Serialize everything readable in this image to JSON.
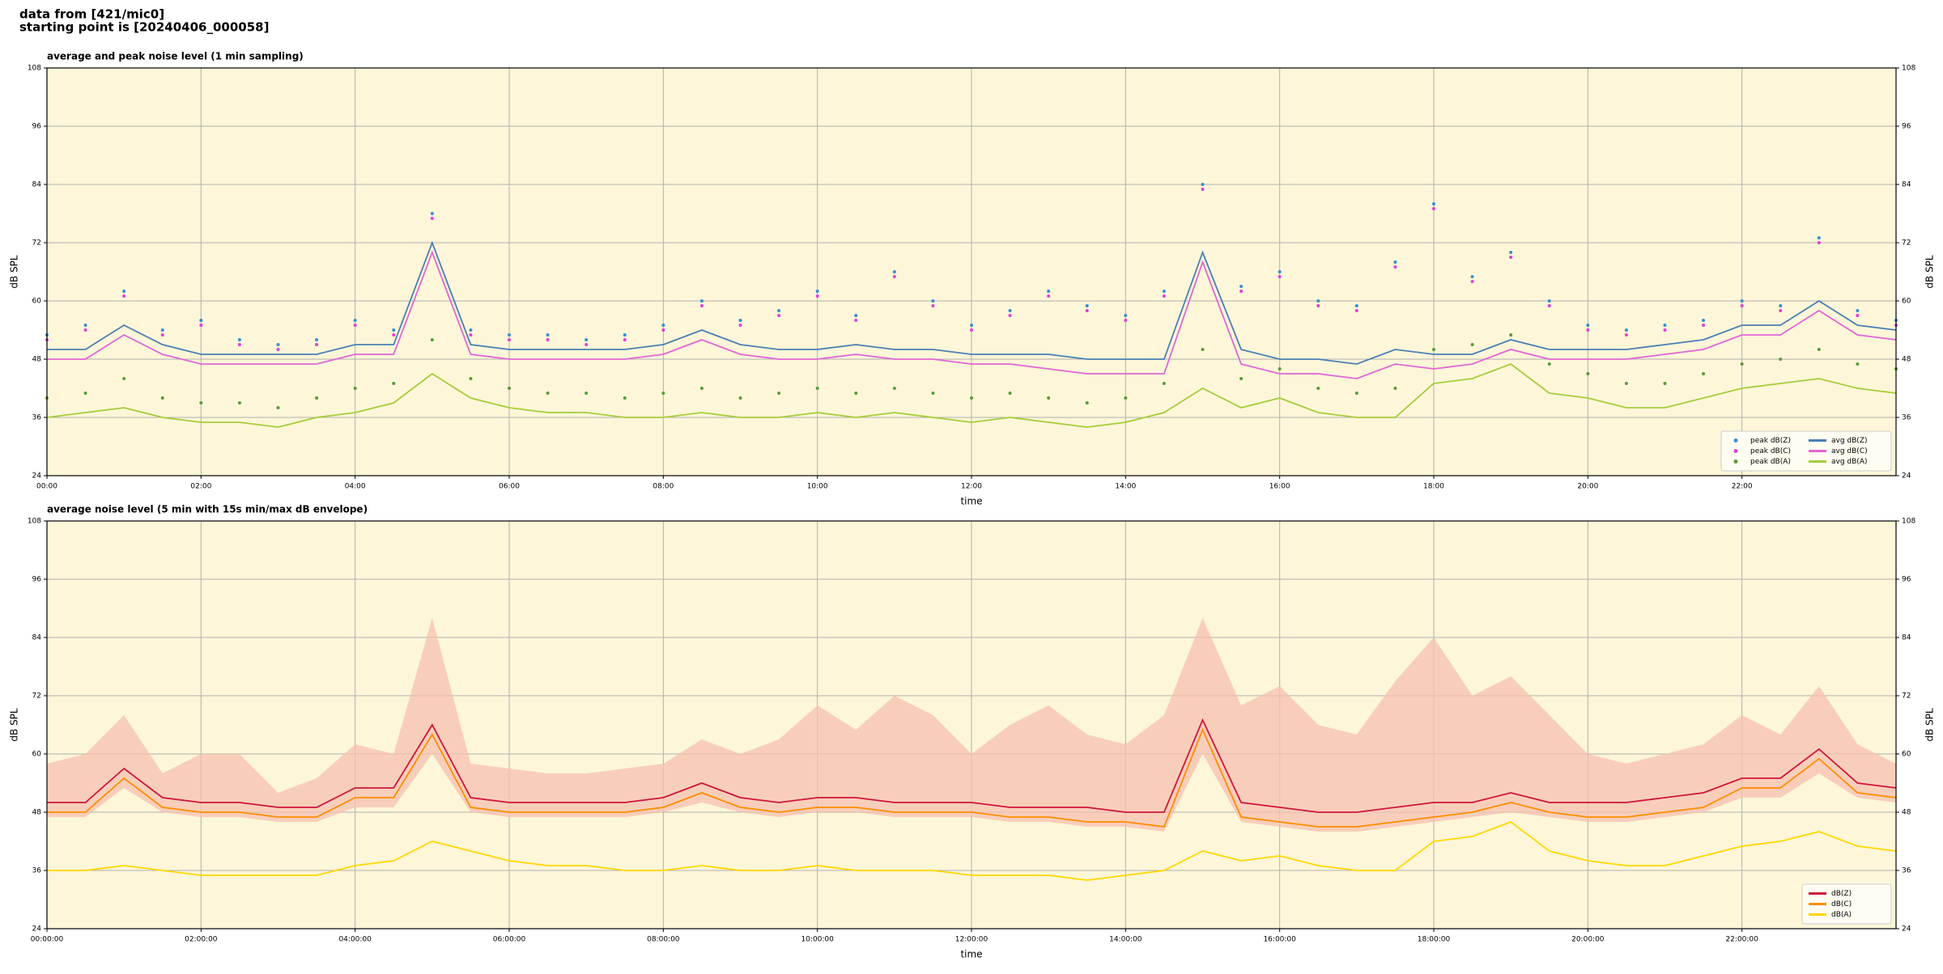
{
  "header": {
    "line1": "data from [421/mic0]",
    "line2": "starting point is [20240406_000058]"
  },
  "chart_data": [
    {
      "type": "line",
      "title": "average and peak noise level (1 min sampling)",
      "xlabel": "time",
      "ylabel": "dB SPL",
      "xlim": [
        0,
        24
      ],
      "ylim": [
        24,
        108
      ],
      "yticks": [
        24,
        36,
        48,
        60,
        72,
        84,
        96,
        108
      ],
      "xticks": [
        {
          "value": 0,
          "label": "00:00"
        },
        {
          "value": 2,
          "label": "02:00"
        },
        {
          "value": 4,
          "label": "04:00"
        },
        {
          "value": 6,
          "label": "06:00"
        },
        {
          "value": 8,
          "label": "08:00"
        },
        {
          "value": 10,
          "label": "10:00"
        },
        {
          "value": 12,
          "label": "12:00"
        },
        {
          "value": 14,
          "label": "14:00"
        },
        {
          "value": 16,
          "label": "16:00"
        },
        {
          "value": 18,
          "label": "18:00"
        },
        {
          "value": 20,
          "label": "20:00"
        },
        {
          "value": 22,
          "label": "22:00"
        }
      ],
      "grid": true,
      "legend": "lower right",
      "background": "#fdf6d8",
      "x": [
        0,
        0.5,
        1,
        1.5,
        2,
        2.5,
        3,
        3.5,
        4,
        4.5,
        5,
        5.5,
        6,
        6.5,
        7,
        7.5,
        8,
        8.5,
        9,
        9.5,
        10,
        10.5,
        11,
        11.5,
        12,
        12.5,
        13,
        13.5,
        14,
        14.5,
        15,
        15.5,
        16,
        16.5,
        17,
        17.5,
        18,
        18.5,
        19,
        19.5,
        20,
        20.5,
        21,
        21.5,
        22,
        22.5,
        23,
        23.5,
        24
      ],
      "series": [
        {
          "name": "peak dB(Z)",
          "style": "scatter",
          "color": "#3a8fd0",
          "values": [
            53,
            55,
            62,
            54,
            56,
            52,
            51,
            52,
            56,
            54,
            78,
            54,
            53,
            53,
            52,
            53,
            55,
            60,
            56,
            58,
            62,
            57,
            66,
            60,
            55,
            58,
            62,
            59,
            57,
            62,
            84,
            63,
            66,
            60,
            59,
            68,
            80,
            65,
            70,
            60,
            55,
            54,
            55,
            56,
            60,
            59,
            73,
            58,
            56
          ]
        },
        {
          "name": "peak dB(C)",
          "style": "scatter",
          "color": "#e040d8",
          "values": [
            52,
            54,
            61,
            53,
            55,
            51,
            50,
            51,
            55,
            53,
            77,
            53,
            52,
            52,
            51,
            52,
            54,
            59,
            55,
            57,
            61,
            56,
            65,
            59,
            54,
            57,
            61,
            58,
            56,
            61,
            83,
            62,
            65,
            59,
            58,
            67,
            79,
            64,
            69,
            59,
            54,
            53,
            54,
            55,
            59,
            58,
            72,
            57,
            55
          ]
        },
        {
          "name": "peak dB(A)",
          "style": "scatter",
          "color": "#5a9a3a",
          "values": [
            40,
            41,
            44,
            40,
            39,
            39,
            38,
            40,
            42,
            43,
            52,
            44,
            42,
            41,
            41,
            40,
            41,
            42,
            40,
            41,
            42,
            41,
            42,
            41,
            40,
            41,
            40,
            39,
            40,
            43,
            50,
            44,
            46,
            42,
            41,
            42,
            50,
            51,
            53,
            47,
            45,
            43,
            43,
            45,
            47,
            48,
            50,
            47,
            46
          ]
        },
        {
          "name": "avg dB(Z)",
          "style": "line",
          "color": "#4a7fb5",
          "values": [
            50,
            50,
            55,
            51,
            49,
            49,
            49,
            49,
            51,
            51,
            72,
            51,
            50,
            50,
            50,
            50,
            51,
            54,
            51,
            50,
            50,
            51,
            50,
            50,
            49,
            49,
            49,
            48,
            48,
            48,
            70,
            50,
            48,
            48,
            47,
            50,
            49,
            49,
            52,
            50,
            50,
            50,
            51,
            52,
            55,
            55,
            60,
            55,
            54
          ]
        },
        {
          "name": "avg dB(C)",
          "style": "line",
          "color": "#e066d6",
          "values": [
            48,
            48,
            53,
            49,
            47,
            47,
            47,
            47,
            49,
            49,
            70,
            49,
            48,
            48,
            48,
            48,
            49,
            52,
            49,
            48,
            48,
            49,
            48,
            48,
            47,
            47,
            46,
            45,
            45,
            45,
            68,
            47,
            45,
            45,
            44,
            47,
            46,
            47,
            50,
            48,
            48,
            48,
            49,
            50,
            53,
            53,
            58,
            53,
            52
          ]
        },
        {
          "name": "avg dB(A)",
          "style": "line",
          "color": "#a6cc3c",
          "values": [
            36,
            37,
            38,
            36,
            35,
            35,
            34,
            36,
            37,
            39,
            45,
            40,
            38,
            37,
            37,
            36,
            36,
            37,
            36,
            36,
            37,
            36,
            37,
            36,
            35,
            36,
            35,
            34,
            35,
            37,
            42,
            38,
            40,
            37,
            36,
            36,
            43,
            44,
            47,
            41,
            40,
            38,
            38,
            40,
            42,
            43,
            44,
            42,
            41
          ]
        }
      ]
    },
    {
      "type": "line",
      "title": "average noise level (5 min with 15s min/max dB envelope)",
      "xlabel": "time",
      "ylabel": "dB SPL",
      "xlim": [
        0,
        24
      ],
      "ylim": [
        24,
        108
      ],
      "yticks": [
        24,
        36,
        48,
        60,
        72,
        84,
        96,
        108
      ],
      "xticks": [
        {
          "value": 0,
          "label": "00:00:00"
        },
        {
          "value": 2,
          "label": "02:00:00"
        },
        {
          "value": 4,
          "label": "04:00:00"
        },
        {
          "value": 6,
          "label": "06:00:00"
        },
        {
          "value": 8,
          "label": "08:00:00"
        },
        {
          "value": 10,
          "label": "10:00:00"
        },
        {
          "value": 12,
          "label": "12:00:00"
        },
        {
          "value": 14,
          "label": "14:00:00"
        },
        {
          "value": 16,
          "label": "16:00:00"
        },
        {
          "value": 18,
          "label": "18:00:00"
        },
        {
          "value": 20,
          "label": "20:00:00"
        },
        {
          "value": 22,
          "label": "22:00:00"
        }
      ],
      "grid": true,
      "legend": "lower right",
      "background": "#fdf6d8",
      "x": [
        0,
        0.5,
        1,
        1.5,
        2,
        2.5,
        3,
        3.5,
        4,
        4.5,
        5,
        5.5,
        6,
        6.5,
        7,
        7.5,
        8,
        8.5,
        9,
        9.5,
        10,
        10.5,
        11,
        11.5,
        12,
        12.5,
        13,
        13.5,
        14,
        14.5,
        15,
        15.5,
        16,
        16.5,
        17,
        17.5,
        18,
        18.5,
        19,
        19.5,
        20,
        20.5,
        21,
        21.5,
        22,
        22.5,
        23,
        23.5,
        24
      ],
      "band": {
        "color": "#f5c0b0",
        "low": [
          47,
          47,
          53,
          48,
          47,
          47,
          46,
          46,
          49,
          49,
          60,
          48,
          47,
          47,
          47,
          47,
          48,
          50,
          48,
          47,
          48,
          48,
          47,
          47,
          47,
          46,
          46,
          45,
          45,
          44,
          60,
          46,
          45,
          44,
          44,
          45,
          46,
          47,
          48,
          47,
          46,
          46,
          47,
          48,
          51,
          51,
          56,
          51,
          50
        ],
        "high": [
          58,
          60,
          68,
          56,
          60,
          60,
          52,
          55,
          62,
          60,
          88,
          58,
          57,
          56,
          56,
          57,
          58,
          63,
          60,
          63,
          70,
          65,
          72,
          68,
          60,
          66,
          70,
          64,
          62,
          68,
          88,
          70,
          74,
          66,
          64,
          75,
          84,
          72,
          76,
          68,
          60,
          58,
          60,
          62,
          68,
          64,
          74,
          62,
          58
        ]
      },
      "series": [
        {
          "name": "dB(Z)",
          "style": "line",
          "color": "#d0143c",
          "values": [
            50,
            50,
            57,
            51,
            50,
            50,
            49,
            49,
            53,
            53,
            66,
            51,
            50,
            50,
            50,
            50,
            51,
            54,
            51,
            50,
            51,
            51,
            50,
            50,
            50,
            49,
            49,
            49,
            48,
            48,
            67,
            50,
            49,
            48,
            48,
            49,
            50,
            50,
            52,
            50,
            50,
            50,
            51,
            52,
            55,
            55,
            61,
            54,
            53
          ]
        },
        {
          "name": "dB(C)",
          "style": "line",
          "color": "#ff8c00",
          "values": [
            48,
            48,
            55,
            49,
            48,
            48,
            47,
            47,
            51,
            51,
            64,
            49,
            48,
            48,
            48,
            48,
            49,
            52,
            49,
            48,
            49,
            49,
            48,
            48,
            48,
            47,
            47,
            46,
            46,
            45,
            65,
            47,
            46,
            45,
            45,
            46,
            47,
            48,
            50,
            48,
            47,
            47,
            48,
            49,
            53,
            53,
            59,
            52,
            51
          ]
        },
        {
          "name": "dB(A)",
          "style": "line",
          "color": "#ffd700",
          "values": [
            36,
            36,
            37,
            36,
            35,
            35,
            35,
            35,
            37,
            38,
            42,
            40,
            38,
            37,
            37,
            36,
            36,
            37,
            36,
            36,
            37,
            36,
            36,
            36,
            35,
            35,
            35,
            34,
            35,
            36,
            40,
            38,
            39,
            37,
            36,
            36,
            42,
            43,
            46,
            40,
            38,
            37,
            37,
            39,
            41,
            42,
            44,
            41,
            40
          ]
        }
      ]
    }
  ]
}
